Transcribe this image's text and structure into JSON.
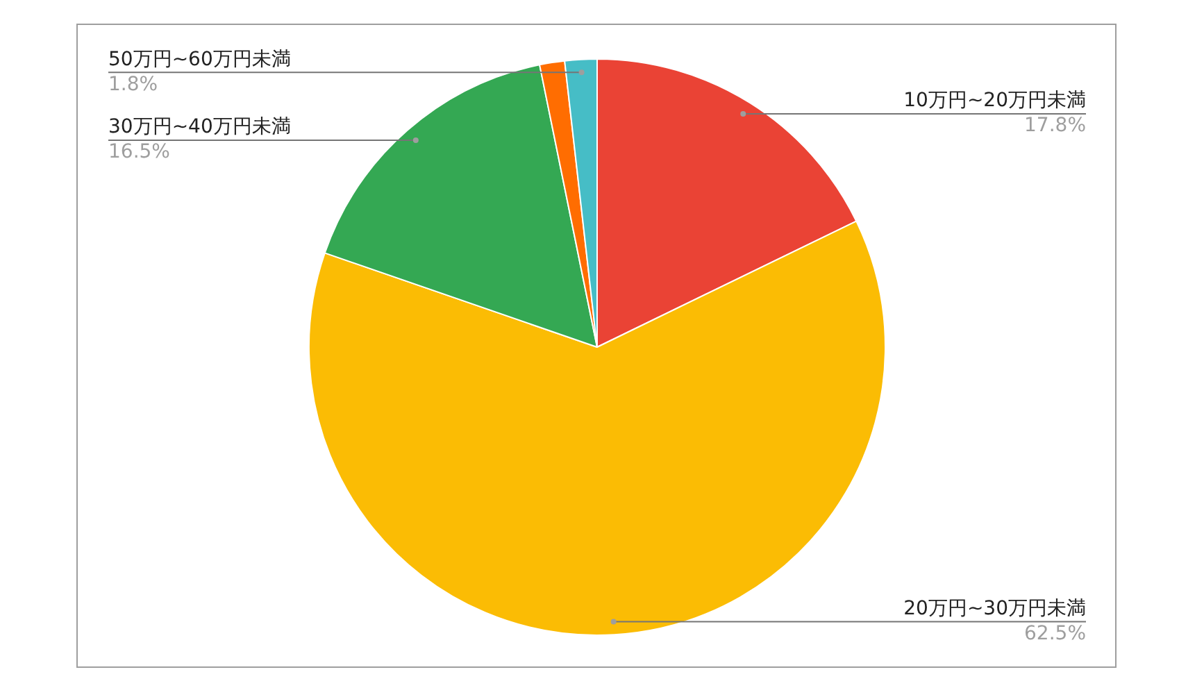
{
  "chart_data": {
    "type": "pie",
    "categories": [
      "10万円~20万円未満",
      "20万円~30万円未満",
      "30万円~40万円未満",
      null,
      "50万円~60万円未満"
    ],
    "values": [
      17.8,
      62.5,
      16.5,
      1.4,
      1.8
    ],
    "value_labels": [
      "17.8%",
      "62.5%",
      "16.5%",
      null,
      "1.8%"
    ],
    "colors": [
      "#ea4335",
      "#fbbc04",
      "#34a853",
      "#ff6d01",
      "#46bdc6"
    ],
    "legend": false
  }
}
